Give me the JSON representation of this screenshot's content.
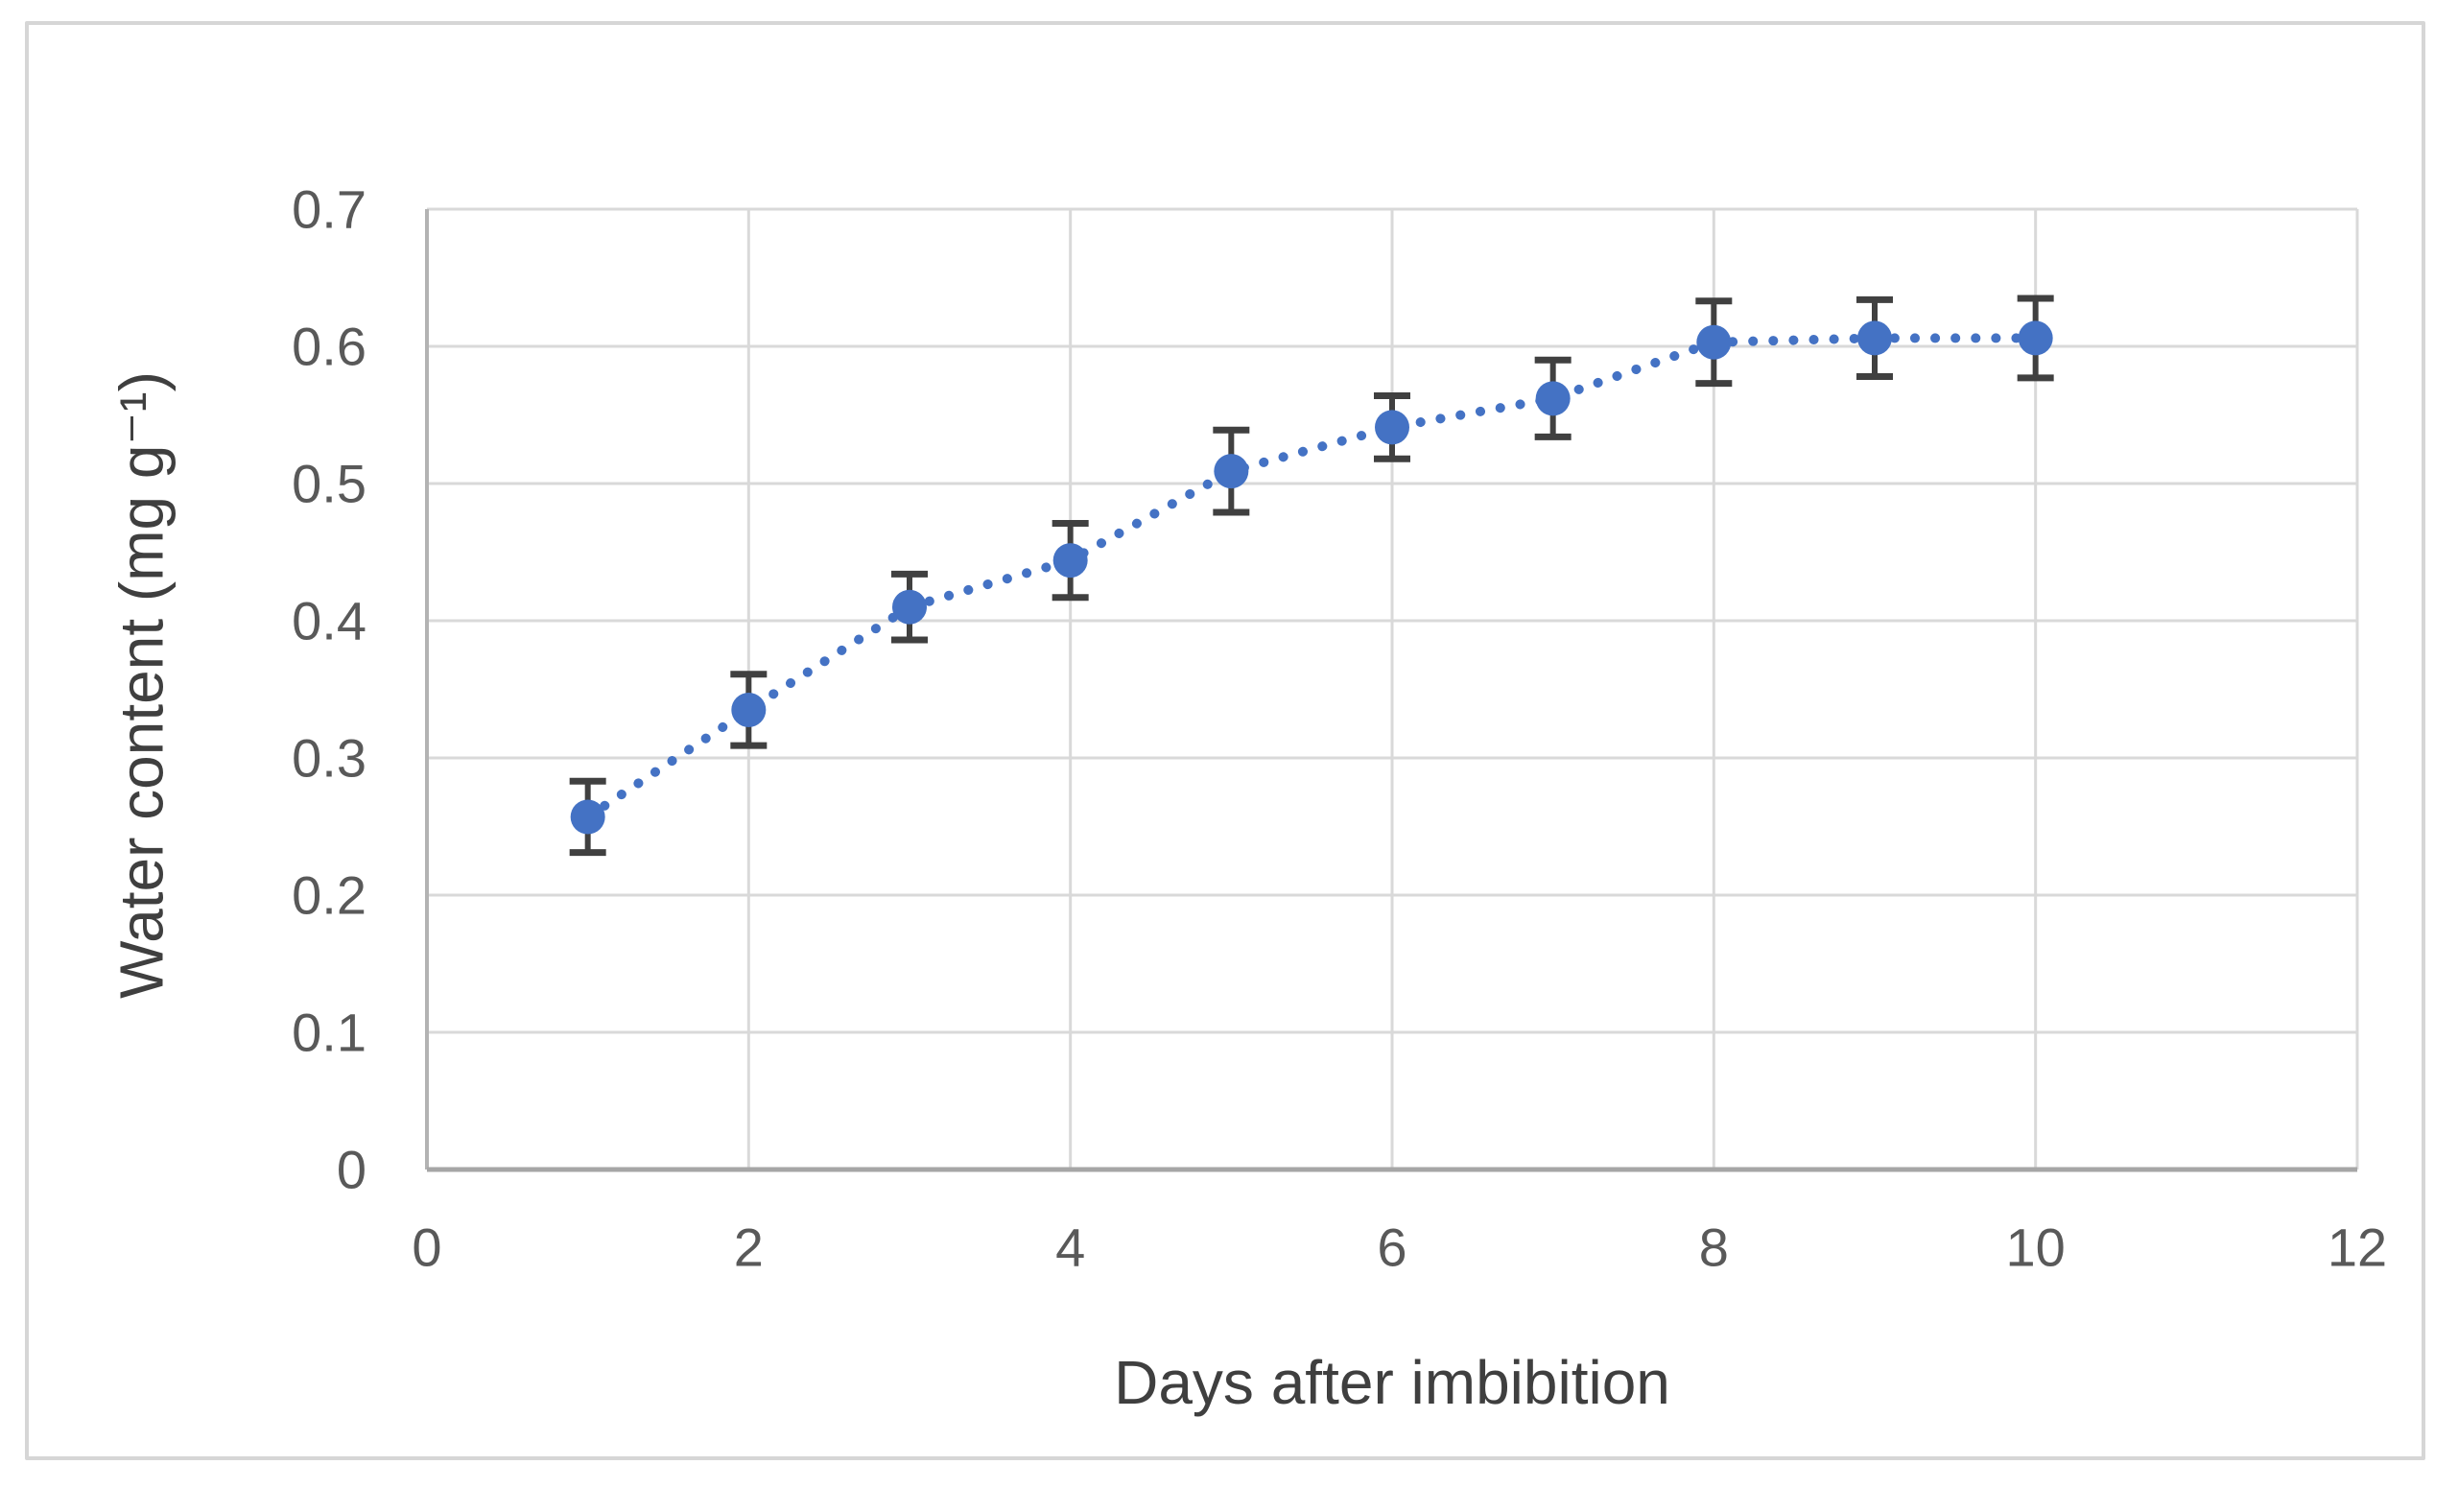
{
  "figure": {
    "background": "#FFFFFF",
    "border_color": "#D6D6D6"
  },
  "chart_data": {
    "type": "scatter",
    "title": "",
    "xlabel": "Days after imbibition",
    "ylabel": "Water content (mg g⁻¹)",
    "x": [
      1,
      2,
      3,
      4,
      5,
      6,
      7,
      8,
      9,
      10
    ],
    "y": [
      0.257,
      0.335,
      0.41,
      0.444,
      0.509,
      0.541,
      0.562,
      0.603,
      0.606,
      0.606
    ],
    "yerr": [
      0.026,
      0.026,
      0.024,
      0.027,
      0.03,
      0.023,
      0.028,
      0.03,
      0.028,
      0.029
    ],
    "xlim": [
      0,
      12
    ],
    "ylim": [
      0,
      0.7
    ],
    "x_ticks": [
      0,
      2,
      4,
      6,
      8,
      10,
      12
    ],
    "y_ticks": [
      0,
      0.1,
      0.2,
      0.3,
      0.4,
      0.5,
      0.6,
      0.7
    ],
    "grid": true,
    "legend": false,
    "line_style": "dotted",
    "marker": "circle",
    "colors": {
      "series": "#4472C4",
      "error_bar": "#404040",
      "gridline": "#D9D9D9",
      "axis_line": "#B3B3B3",
      "axis_line_bottom": "#A6A6A6",
      "tick_label": "#595959",
      "axis_title": "#3F3F3F"
    }
  }
}
